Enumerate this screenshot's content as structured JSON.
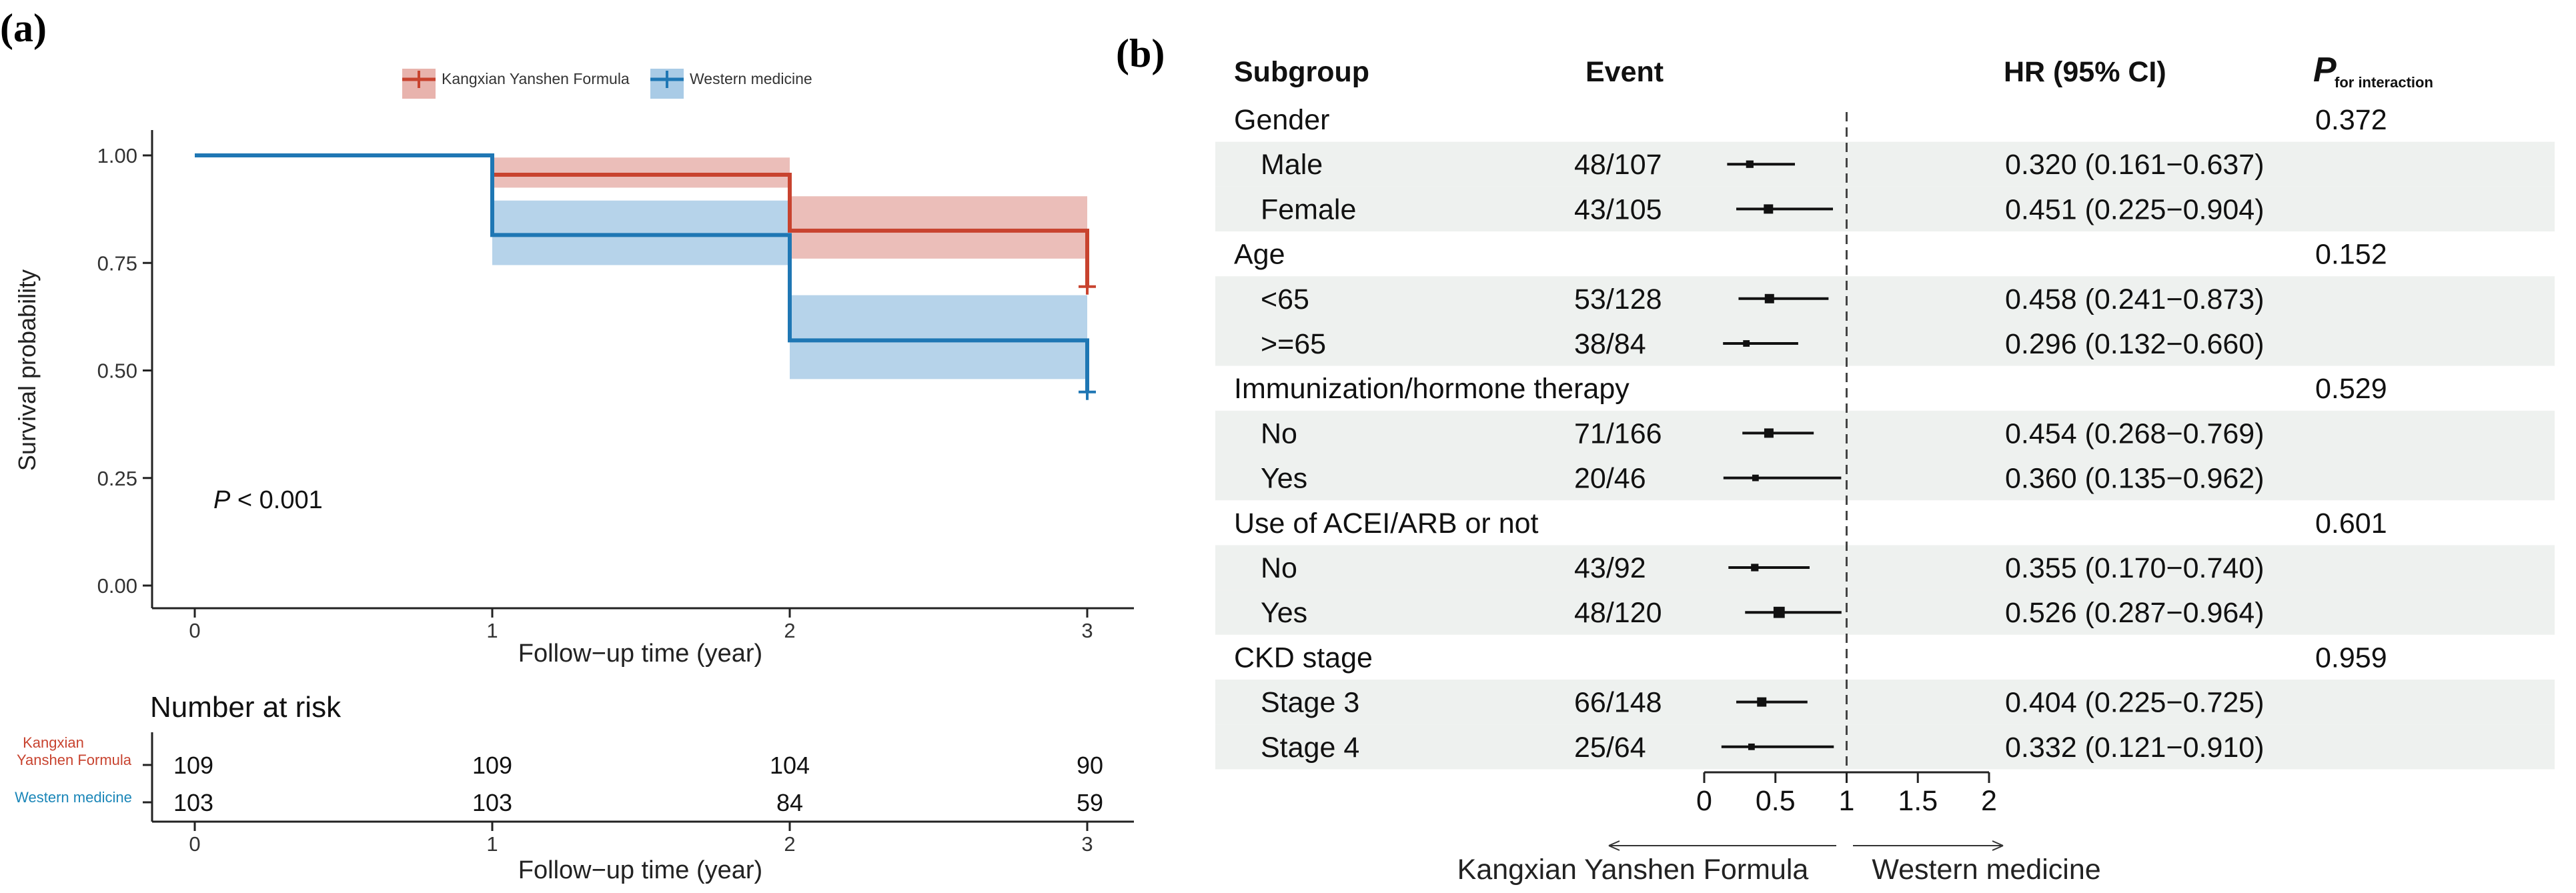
{
  "colors": {
    "kangxian": "#c8432f",
    "western": "#1f77b4",
    "kangxian_band": "#e8b3ad",
    "western_band": "#a9cbe6",
    "risk_kangxian_label": "#c8432f",
    "risk_western_label": "#1a86b8",
    "stripe": "#eef1ef"
  },
  "panel_a": {
    "tag": "(a)",
    "p_value": {
      "prefix": "P",
      "rest": " < 0.001"
    },
    "risk_title": "Number at risk",
    "risk_group_kangxian_line1": "Kangxian",
    "risk_group_kangxian_line2": "Yanshen Formula",
    "risk_group_western": "Western medicine"
  },
  "chart_data": [
    {
      "type": "line",
      "subtype": "kaplan-meier",
      "legend": [
        "Kangxian Yanshen Formula",
        "Western medicine"
      ],
      "xlabel": "Follow−up time (year)",
      "ylabel": "Survival probability",
      "xlim": [
        0,
        3
      ],
      "ylim": [
        0,
        1
      ],
      "x_ticks": [
        "0",
        "1",
        "2",
        "3"
      ],
      "y_ticks": [
        "0.00",
        "0.25",
        "0.50",
        "0.75",
        "1.00"
      ],
      "series": [
        {
          "name": "Kangxian Yanshen Formula",
          "steps": [
            [
              0,
              1.0
            ],
            [
              1,
              0.955
            ],
            [
              2,
              0.825
            ],
            [
              3,
              0.825
            ]
          ],
          "ci": [
            [
              0,
              1.0,
              1.0
            ],
            [
              1,
              0.925,
              0.995
            ],
            [
              2,
              0.76,
              0.905
            ],
            [
              3,
              0.76,
              0.905
            ]
          ],
          "censor": [
            3,
            0.695
          ]
        },
        {
          "name": "Western medicine",
          "steps": [
            [
              0,
              1.0
            ],
            [
              1,
              0.815
            ],
            [
              2,
              0.57
            ],
            [
              3,
              0.57
            ]
          ],
          "ci": [
            [
              0,
              1.0,
              1.0
            ],
            [
              1,
              0.745,
              0.895
            ],
            [
              2,
              0.48,
              0.675
            ],
            [
              3,
              0.48,
              0.675
            ]
          ],
          "censor": [
            3,
            0.45
          ]
        }
      ]
    },
    {
      "type": "table",
      "title": "Number at risk",
      "xlabel": "Follow−up time (year)",
      "x_ticks": [
        "0",
        "1",
        "2",
        "3"
      ],
      "rows": [
        {
          "group": "Kangxian Yanshen Formula",
          "values": [
            "109",
            "109",
            "104",
            "90"
          ]
        },
        {
          "group": "Western medicine",
          "values": [
            "103",
            "103",
            "84",
            "59"
          ]
        }
      ]
    },
    {
      "type": "scatter",
      "subtype": "forest-plot",
      "xlim": [
        0,
        2
      ],
      "x_ticks": [
        "0",
        "0.5",
        "1",
        "1.5",
        "2"
      ],
      "reference_line": 1,
      "left_direction_label": "Kangxian Yanshen Formula",
      "right_direction_label": "Western medicine",
      "headers": {
        "subgroup": "Subgroup",
        "event": "Event",
        "hr": "HR (95% CI)",
        "p_main": "P",
        "p_sub": "for interaction"
      },
      "rows": [
        {
          "label": "Gender",
          "header": true,
          "p": "0.372"
        },
        {
          "label": "Male",
          "event": "48/107",
          "hr": 0.32,
          "lo": 0.161,
          "hi": 0.637,
          "text": "0.320 (0.161−0.637)",
          "size": 0.8
        },
        {
          "label": "Female",
          "event": "43/105",
          "hr": 0.451,
          "lo": 0.225,
          "hi": 0.904,
          "text": "0.451 (0.225−0.904)",
          "size": 1.0
        },
        {
          "label": "Age",
          "header": true,
          "p": "0.152"
        },
        {
          "label": "<65",
          "event": "53/128",
          "hr": 0.458,
          "lo": 0.241,
          "hi": 0.873,
          "text": "0.458 (0.241−0.873)",
          "size": 1.0
        },
        {
          "label": ">=65",
          "event": "38/84",
          "hr": 0.296,
          "lo": 0.132,
          "hi": 0.66,
          "text": "0.296 (0.132−0.660)",
          "size": 0.7
        },
        {
          "label": "Immunization/hormone therapy",
          "header": true,
          "p": "0.529"
        },
        {
          "label": "No",
          "event": "71/166",
          "hr": 0.454,
          "lo": 0.268,
          "hi": 0.769,
          "text": "0.454 (0.268−0.769)",
          "size": 1.0
        },
        {
          "label": "Yes",
          "event": "20/46",
          "hr": 0.36,
          "lo": 0.135,
          "hi": 0.962,
          "text": "0.360 (0.135−0.962)",
          "size": 0.7
        },
        {
          "label": "Use of ACEI/ARB or not",
          "header": true,
          "p": "0.601"
        },
        {
          "label": "No",
          "event": "43/92",
          "hr": 0.355,
          "lo": 0.17,
          "hi": 0.74,
          "text": "0.355 (0.170−0.740)",
          "size": 0.8
        },
        {
          "label": "Yes",
          "event": "48/120",
          "hr": 0.526,
          "lo": 0.287,
          "hi": 0.964,
          "text": "0.526 (0.287−0.964)",
          "size": 1.2
        },
        {
          "label": "CKD stage",
          "header": true,
          "p": "0.959"
        },
        {
          "label": "Stage 3",
          "event": "66/148",
          "hr": 0.404,
          "lo": 0.225,
          "hi": 0.725,
          "text": "0.404 (0.225−0.725)",
          "size": 1.0
        },
        {
          "label": "Stage 4",
          "event": "25/64",
          "hr": 0.332,
          "lo": 0.121,
          "hi": 0.91,
          "text": "0.332 (0.121−0.910)",
          "size": 0.7
        }
      ]
    }
  ],
  "panel_b": {
    "tag": "(b)"
  }
}
